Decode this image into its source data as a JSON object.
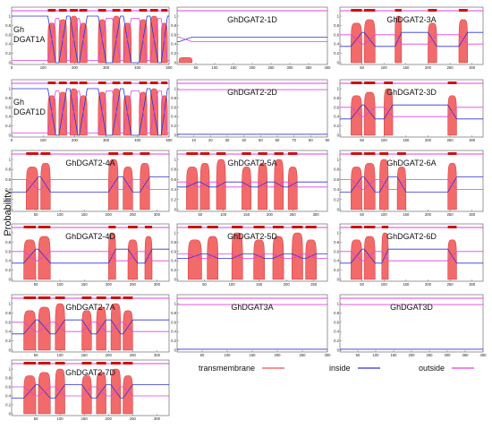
{
  "figure": {
    "ylabel": "Probability",
    "legend": [
      {
        "label": "transmembrane",
        "color": "#f05050"
      },
      {
        "label": "inside",
        "color": "#3030d8"
      },
      {
        "label": "outside",
        "color": "#e040e0"
      }
    ]
  },
  "chart_data": [
    {
      "type": "area",
      "title": "Gh DGAT1A",
      "xmax": 500,
      "xticks": [
        0,
        100,
        200,
        300,
        400,
        500
      ],
      "ylim": [
        0,
        1
      ],
      "yticks": [
        0,
        0.2,
        0.4,
        0.6,
        0.8,
        1
      ],
      "tm_segments": [
        [
          115,
          140
        ],
        [
          150,
          175
        ],
        [
          185,
          210
        ],
        [
          215,
          240
        ],
        [
          275,
          300
        ],
        [
          320,
          345
        ],
        [
          355,
          380
        ],
        [
          405,
          430
        ],
        [
          440,
          465
        ],
        [
          475,
          495
        ]
      ],
      "tm_peak": 1.0,
      "inside_level": 1.0,
      "outside_level": 0.05
    },
    {
      "type": "area",
      "title": "GhDGAT2-1D",
      "xmax": 400,
      "xticks": [
        50,
        100,
        150,
        200,
        250,
        300,
        350,
        400
      ],
      "ylim": [
        0,
        1
      ],
      "yticks": [
        0,
        0.2,
        0.4,
        0.6,
        0.8,
        1
      ],
      "tm_segments": [
        [
          5,
          40
        ]
      ],
      "tm_peak": 0.13,
      "inside_level": 0.45,
      "outside_level": 0.55
    },
    {
      "type": "area",
      "title": "GhDGAT2-3A",
      "xmax": 325,
      "xticks": [
        50,
        100,
        150,
        200,
        250,
        300
      ],
      "ylim": [
        0,
        1
      ],
      "yticks": [
        0,
        0.2,
        0.4,
        0.6,
        0.8,
        1
      ],
      "tm_segments": [
        [
          25,
          50
        ],
        [
          55,
          80
        ],
        [
          125,
          140
        ],
        [
          200,
          220
        ],
        [
          270,
          290
        ]
      ],
      "tm_peak": 1.0,
      "inside_level": 0.35,
      "outside_level": 0.6
    },
    {
      "type": "area",
      "title": "Gh DGAT1D",
      "xmax": 500,
      "xticks": [
        0,
        100,
        200,
        300,
        400,
        500
      ],
      "ylim": [
        0,
        1
      ],
      "yticks": [
        0,
        0.2,
        0.4,
        0.6,
        0.8,
        1
      ],
      "tm_segments": [
        [
          115,
          140
        ],
        [
          150,
          175
        ],
        [
          185,
          210
        ],
        [
          215,
          240
        ],
        [
          275,
          300
        ],
        [
          320,
          345
        ],
        [
          355,
          380
        ],
        [
          405,
          430
        ],
        [
          440,
          465
        ],
        [
          475,
          495
        ]
      ],
      "tm_peak": 1.0,
      "inside_level": 1.0,
      "outside_level": 0.05
    },
    {
      "type": "area",
      "title": "GhDGAT2-2D",
      "xmax": 90,
      "xticks": [
        10,
        20,
        30,
        40,
        50,
        60,
        70,
        80,
        90
      ],
      "ylim": [
        0,
        1
      ],
      "yticks": [
        0,
        0.2,
        0.4,
        0.6,
        0.8,
        1
      ],
      "tm_segments": [],
      "tm_peak": 0,
      "inside_level": 0.02,
      "outside_level": 0.98
    },
    {
      "type": "area",
      "title": "GhDGAT2-3D",
      "xmax": 325,
      "xticks": [
        50,
        100,
        150,
        200,
        250,
        300
      ],
      "ylim": [
        0,
        1
      ],
      "yticks": [
        0,
        0.2,
        0.4,
        0.6,
        0.8,
        1
      ],
      "tm_segments": [
        [
          25,
          50
        ],
        [
          55,
          80
        ],
        [
          100,
          120
        ],
        [
          245,
          265
        ]
      ],
      "tm_peak": 1.0,
      "inside_level": 0.35,
      "outside_level": 0.6
    },
    {
      "type": "area",
      "title": "GhDGAT2-4A",
      "xmax": 325,
      "xticks": [
        50,
        100,
        150,
        200,
        250,
        300
      ],
      "ylim": [
        0,
        1
      ],
      "yticks": [
        0,
        0.2,
        0.4,
        0.6,
        0.8,
        1
      ],
      "tm_segments": [
        [
          30,
          55
        ],
        [
          60,
          80
        ],
        [
          200,
          220
        ],
        [
          230,
          250
        ],
        [
          265,
          285
        ]
      ],
      "tm_peak": 1.0,
      "inside_level": 0.35,
      "outside_level": 0.6
    },
    {
      "type": "area",
      "title": "GhDGAT2-5A",
      "xmax": 325,
      "xticks": [
        50,
        100,
        150,
        200,
        250,
        300
      ],
      "ylim": [
        0,
        1
      ],
      "yticks": [
        0,
        0.2,
        0.4,
        0.6,
        0.8,
        1
      ],
      "tm_segments": [
        [
          20,
          45
        ],
        [
          50,
          70
        ],
        [
          85,
          105
        ],
        [
          140,
          160
        ],
        [
          175,
          195
        ],
        [
          210,
          230
        ],
        [
          240,
          260
        ]
      ],
      "tm_peak": 1.0,
      "inside_level": 0.45,
      "outside_level": 0.55
    },
    {
      "type": "area",
      "title": "GhDGAT2-6A",
      "xmax": 325,
      "xticks": [
        50,
        100,
        150,
        200,
        250,
        300
      ],
      "ylim": [
        0,
        1
      ],
      "yticks": [
        0,
        0.2,
        0.4,
        0.6,
        0.8,
        1
      ],
      "tm_segments": [
        [
          25,
          50
        ],
        [
          55,
          80
        ],
        [
          90,
          110
        ],
        [
          130,
          150
        ],
        [
          245,
          265
        ]
      ],
      "tm_peak": 1.0,
      "inside_level": 0.35,
      "outside_level": 0.6
    },
    {
      "type": "area",
      "title": "GhDGAT2-4D",
      "xmax": 325,
      "xticks": [
        50,
        100,
        150,
        200,
        250,
        300
      ],
      "ylim": [
        0,
        1
      ],
      "yticks": [
        0,
        0.2,
        0.4,
        0.6,
        0.8,
        1
      ],
      "tm_segments": [
        [
          25,
          50
        ],
        [
          55,
          80
        ],
        [
          200,
          215
        ],
        [
          240,
          260
        ],
        [
          275,
          290
        ]
      ],
      "tm_peak": 1.0,
      "inside_level": 0.35,
      "outside_level": 0.6
    },
    {
      "type": "area",
      "title": "GhDGAT2-5D",
      "xmax": 275,
      "xticks": [
        50,
        100,
        150,
        200,
        250
      ],
      "ylim": [
        0,
        1
      ],
      "yticks": [
        0,
        0.2,
        0.4,
        0.6,
        0.8,
        1
      ],
      "tm_segments": [
        [
          20,
          45
        ],
        [
          55,
          75
        ],
        [
          100,
          120
        ],
        [
          140,
          160
        ],
        [
          175,
          195
        ],
        [
          210,
          230
        ],
        [
          235,
          255
        ]
      ],
      "tm_peak": 1.0,
      "inside_level": 0.45,
      "outside_level": 0.55
    },
    {
      "type": "area",
      "title": "GhDGAT2-6D",
      "xmax": 325,
      "xticks": [
        50,
        100,
        150,
        200,
        250,
        300
      ],
      "ylim": [
        0,
        1
      ],
      "yticks": [
        0,
        0.2,
        0.4,
        0.6,
        0.8,
        1
      ],
      "tm_segments": [
        [
          25,
          50
        ],
        [
          55,
          80
        ],
        [
          95,
          110
        ],
        [
          245,
          265
        ]
      ],
      "tm_peak": 1.0,
      "inside_level": 0.35,
      "outside_level": 0.6
    },
    {
      "type": "area",
      "title": "GhDGAT2-7A",
      "xmax": 325,
      "xticks": [
        50,
        100,
        150,
        200,
        250,
        300
      ],
      "ylim": [
        0,
        1
      ],
      "yticks": [
        0,
        0.2,
        0.4,
        0.6,
        0.8,
        1
      ],
      "tm_segments": [
        [
          25,
          50
        ],
        [
          55,
          80
        ],
        [
          90,
          110
        ],
        [
          145,
          165
        ],
        [
          175,
          195
        ],
        [
          205,
          225
        ],
        [
          230,
          250
        ]
      ],
      "tm_peak": 1.0,
      "inside_level": 0.35,
      "outside_level": 0.6
    },
    {
      "type": "area",
      "title": "GhDGAT3A",
      "xmax": 300,
      "xticks": [
        50,
        100,
        150,
        200,
        250,
        300
      ],
      "ylim": [
        0,
        1
      ],
      "yticks": [
        0,
        0.2,
        0.4,
        0.6,
        0.8,
        1
      ],
      "tm_segments": [],
      "tm_peak": 0,
      "inside_level": 0.02,
      "outside_level": 0.98
    },
    {
      "type": "area",
      "title": "GhDGAT3D",
      "xmax": 400,
      "xticks": [
        50,
        100,
        150,
        200,
        250,
        300,
        350,
        400
      ],
      "ylim": [
        0,
        1
      ],
      "yticks": [
        0,
        0.2,
        0.4,
        0.6,
        0.8,
        1
      ],
      "tm_segments": [],
      "tm_peak": 0,
      "inside_level": 0.02,
      "outside_level": 0.98
    },
    {
      "type": "area",
      "title": "GhDGAT2-7D",
      "xmax": 325,
      "xticks": [
        50,
        100,
        150,
        200,
        250,
        300
      ],
      "ylim": [
        0,
        1
      ],
      "yticks": [
        0,
        0.2,
        0.4,
        0.6,
        0.8,
        1
      ],
      "tm_segments": [
        [
          25,
          50
        ],
        [
          55,
          80
        ],
        [
          90,
          110
        ],
        [
          145,
          165
        ],
        [
          175,
          195
        ],
        [
          205,
          225
        ],
        [
          230,
          250
        ]
      ],
      "tm_peak": 1.0,
      "inside_level": 0.35,
      "outside_level": 0.6
    }
  ]
}
